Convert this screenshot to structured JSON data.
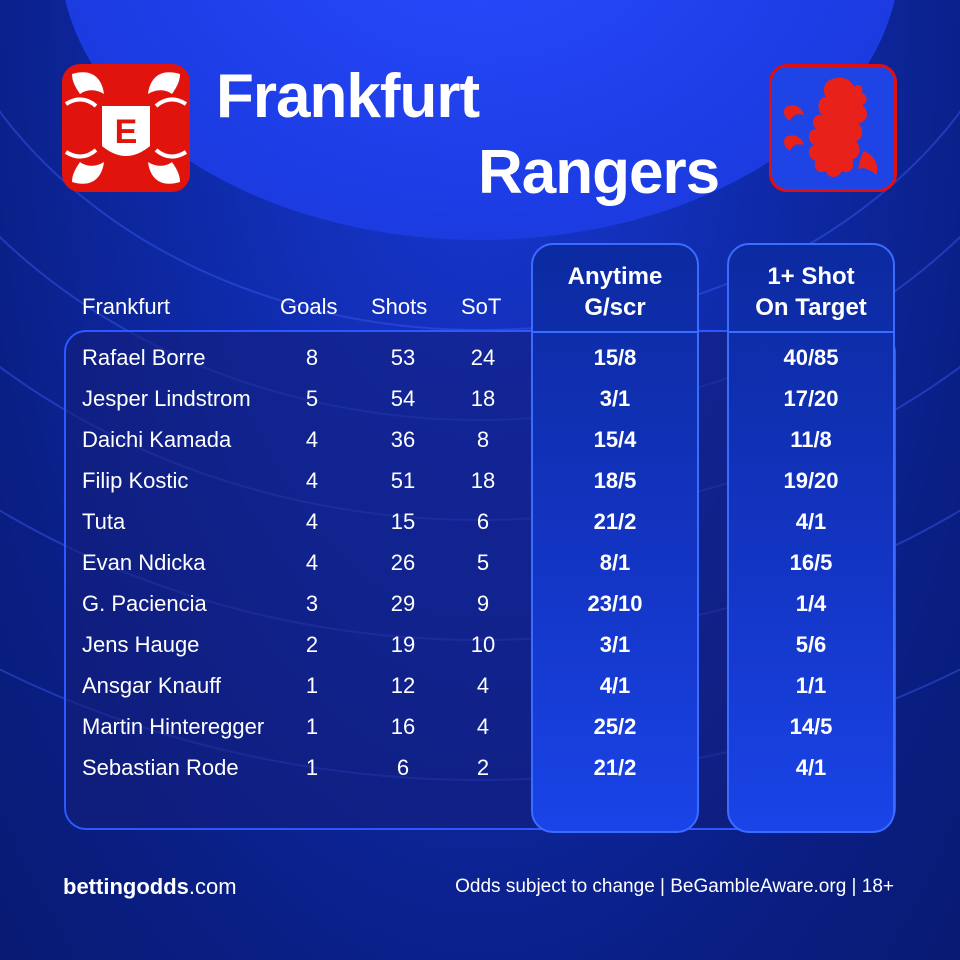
{
  "header": {
    "home_team": "Frankfurt",
    "away_team": "Rangers"
  },
  "logos": {
    "home": {
      "name": "frankfurt-eagle-logo",
      "color": "#e0140c"
    },
    "away": {
      "name": "rangers-lion-logo",
      "color": "#e01010",
      "bg": "#1f44e6"
    }
  },
  "table": {
    "columns": [
      "Frankfurt",
      "Goals",
      "Shots",
      "SoT"
    ],
    "odds_columns": [
      {
        "line1": "Anytime",
        "line2": "G/scr"
      },
      {
        "line1": "1+ Shot",
        "line2": "On Target"
      }
    ],
    "rows": [
      {
        "player": "Rafael Borre",
        "goals": "8",
        "shots": "53",
        "sot": "24",
        "anytime": "15/8",
        "shot_on_target": "40/85"
      },
      {
        "player": "Jesper Lindstrom",
        "goals": "5",
        "shots": "54",
        "sot": "18",
        "anytime": "3/1",
        "shot_on_target": "17/20"
      },
      {
        "player": "Daichi Kamada",
        "goals": "4",
        "shots": "36",
        "sot": "8",
        "anytime": "15/4",
        "shot_on_target": "11/8"
      },
      {
        "player": "Filip Kostic",
        "goals": "4",
        "shots": "51",
        "sot": "18",
        "anytime": "18/5",
        "shot_on_target": "19/20"
      },
      {
        "player": "Tuta",
        "goals": "4",
        "shots": "15",
        "sot": "6",
        "anytime": "21/2",
        "shot_on_target": "4/1"
      },
      {
        "player": "Evan Ndicka",
        "goals": "4",
        "shots": "26",
        "sot": "5",
        "anytime": "8/1",
        "shot_on_target": "16/5"
      },
      {
        "player": "G. Paciencia",
        "goals": "3",
        "shots": "29",
        "sot": "9",
        "anytime": "23/10",
        "shot_on_target": "1/4"
      },
      {
        "player": "Jens Hauge",
        "goals": "2",
        "shots": "19",
        "sot": "10",
        "anytime": "3/1",
        "shot_on_target": "5/6"
      },
      {
        "player": "Ansgar Knauff",
        "goals": "1",
        "shots": "12",
        "sot": "4",
        "anytime": "4/1",
        "shot_on_target": "1/1"
      },
      {
        "player": "Martin Hinteregger",
        "goals": "1",
        "shots": "16",
        "sot": "4",
        "anytime": "25/2",
        "shot_on_target": "14/5"
      },
      {
        "player": "Sebastian Rode",
        "goals": "1",
        "shots": "6",
        "sot": "2",
        "anytime": "21/2",
        "shot_on_target": "4/1"
      }
    ]
  },
  "footer": {
    "brand_bold": "bettingodds",
    "brand_suffix": ".com",
    "disclaimer": "Odds subject to change | BeGambleAware.org | 18+"
  },
  "colors": {
    "background": "#0b1f7a",
    "accent": "#2d58ff",
    "text": "#ffffff"
  }
}
